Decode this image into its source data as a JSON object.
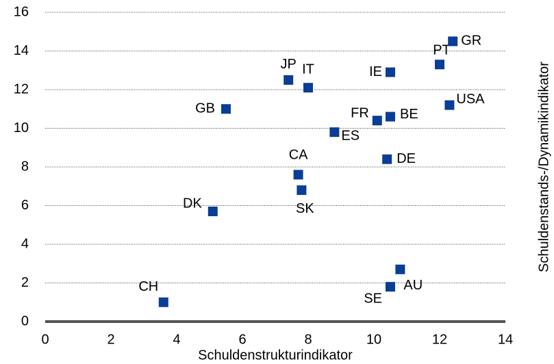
{
  "chart_data": {
    "type": "scatter",
    "xlabel": "Schuldenstrukturindikator",
    "ylabel": "Schuldenstands-/Dynamikindikator",
    "color": "#0a3d96",
    "grid": true,
    "xlim": [
      0,
      14
    ],
    "xticks": [
      0,
      2,
      4,
      6,
      8,
      10,
      12,
      14
    ],
    "ylim": [
      0,
      16
    ],
    "yticks": [
      0,
      2,
      4,
      6,
      8,
      10,
      12,
      14,
      16
    ],
    "labels": [
      "CH",
      "SE",
      "AU",
      "DK",
      "SK",
      "CA",
      "DE",
      "ES",
      "FR",
      "BE",
      "GB",
      "USA",
      "IT",
      "JP",
      "IE",
      "PT",
      "GR"
    ],
    "x": [
      3.6,
      10.5,
      10.8,
      5.1,
      7.8,
      7.7,
      10.4,
      8.8,
      10.1,
      10.5,
      5.5,
      12.3,
      8.0,
      7.4,
      10.5,
      12.0,
      12.4
    ],
    "values": [
      1.0,
      1.8,
      2.7,
      5.7,
      6.8,
      7.6,
      8.4,
      9.8,
      10.4,
      10.6,
      11.0,
      11.2,
      12.1,
      12.5,
      12.9,
      13.3,
      14.5
    ]
  }
}
